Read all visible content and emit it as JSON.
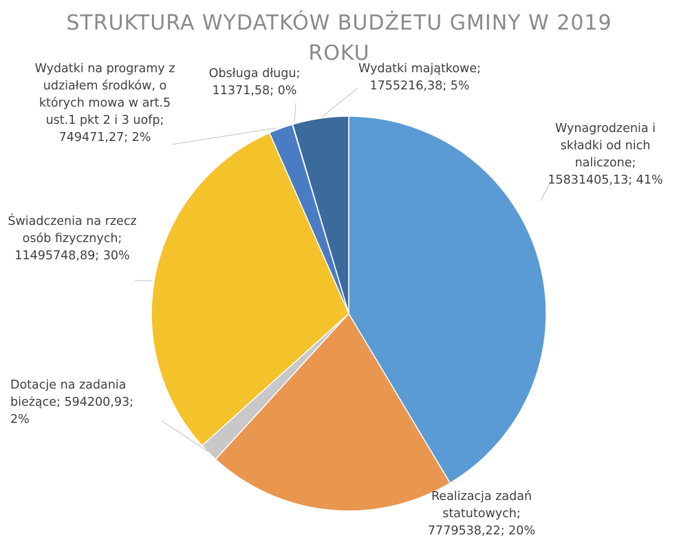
{
  "chart_data": {
    "type": "pie",
    "title": "STRUKTURA WYDATKÓW BUDŻETU GMINY W 2019 ROKU",
    "categories": [
      "Wynagrodzenia i składki od nich naliczone",
      "Realizacja zadań statutowych",
      "Dotacje na zadania bieżące",
      "Świadczenia na rzecz osób fizycznych",
      "Wydatki na programy z udziałem środków, o których mowa w art.5 ust.1 pkt 2 i 3 uofp",
      "Obsługa długu",
      "Wydatki majątkowe"
    ],
    "values": [
      15831405.13,
      7779538.22,
      594200.93,
      11495748.89,
      749471.27,
      11371.58,
      1755216.38
    ],
    "value_labels": [
      "15831405,13",
      "7779538,22",
      "594200,93",
      "11495748,89",
      "749471,27",
      "11371,58",
      "1755216,38"
    ],
    "percent_labels": [
      "41%",
      "20%",
      "2%",
      "30%",
      "2%",
      "0%",
      "5%"
    ],
    "label_separator": "; ",
    "colors": [
      "#5b9bd5",
      "#e9964f",
      "#c8c8c8",
      "#f4c22b",
      "#4a7cc4",
      "#34628f",
      "#3a6b9c"
    ]
  }
}
